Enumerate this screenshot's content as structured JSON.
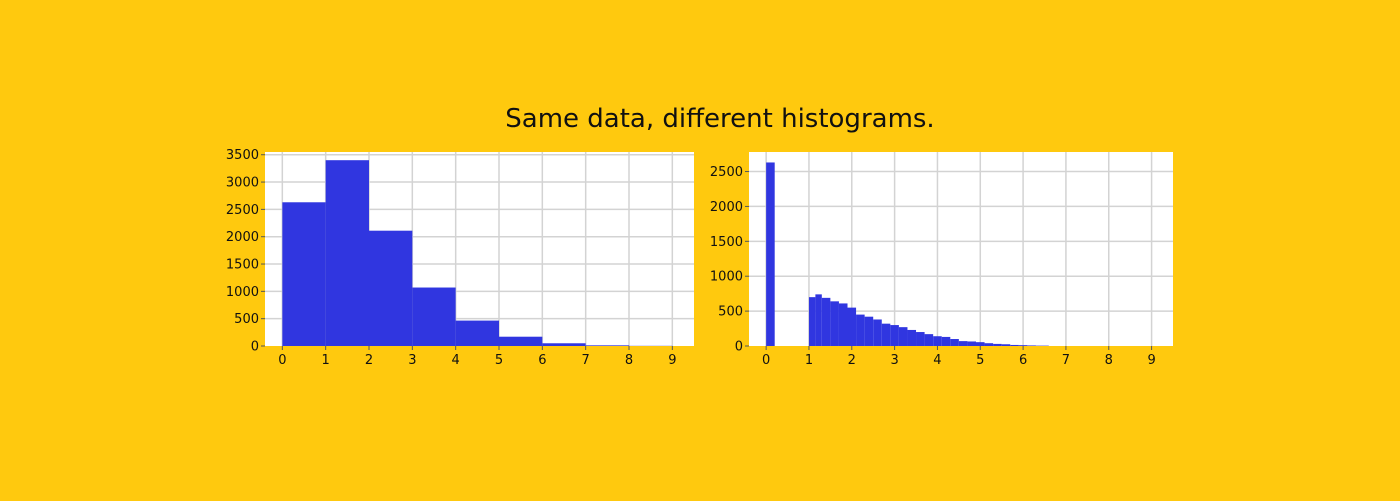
{
  "title": "Same data, different histograms.",
  "colors": {
    "background": "#FFC90E",
    "bar": "#3036E0",
    "grid": "#D3D3D3",
    "plot_bg": "#FFFFFF"
  },
  "chart_data": [
    {
      "type": "bar",
      "title": "",
      "xlabel": "",
      "ylabel": "",
      "xlim": [
        -0.4,
        9.5
      ],
      "ylim": [
        0,
        3550
      ],
      "xticks": [
        "0",
        "1",
        "2",
        "3",
        "4",
        "5",
        "6",
        "7",
        "8",
        "9"
      ],
      "yticks": [
        "0",
        "500",
        "1000",
        "1500",
        "2000",
        "2500",
        "3000",
        "3500"
      ],
      "grid": true,
      "bins": [
        {
          "x0": 0,
          "x1": 1,
          "value": 2630
        },
        {
          "x0": 1,
          "x1": 2,
          "value": 3400
        },
        {
          "x0": 2,
          "x1": 3,
          "value": 2110
        },
        {
          "x0": 3,
          "x1": 4,
          "value": 1070
        },
        {
          "x0": 4,
          "x1": 5,
          "value": 465
        },
        {
          "x0": 5,
          "x1": 6,
          "value": 170
        },
        {
          "x0": 6,
          "x1": 7,
          "value": 50
        },
        {
          "x0": 7,
          "x1": 8,
          "value": 12
        },
        {
          "x0": 8,
          "x1": 9,
          "value": 3
        }
      ]
    },
    {
      "type": "bar",
      "title": "",
      "xlabel": "",
      "ylabel": "",
      "xlim": [
        -0.4,
        9.5
      ],
      "ylim": [
        0,
        2780
      ],
      "xticks": [
        "0",
        "1",
        "2",
        "3",
        "4",
        "5",
        "6",
        "7",
        "8",
        "9"
      ],
      "yticks": [
        "0",
        "500",
        "1000",
        "1500",
        "2000",
        "2500"
      ],
      "grid": true,
      "bins": [
        {
          "x0": 0.0,
          "x1": 0.2,
          "value": 2630
        },
        {
          "x0": 1.0,
          "x1": 1.15,
          "value": 700
        },
        {
          "x0": 1.15,
          "x1": 1.3,
          "value": 740
        },
        {
          "x0": 1.3,
          "x1": 1.5,
          "value": 690
        },
        {
          "x0": 1.5,
          "x1": 1.7,
          "value": 640
        },
        {
          "x0": 1.7,
          "x1": 1.9,
          "value": 610
        },
        {
          "x0": 1.9,
          "x1": 2.1,
          "value": 550
        },
        {
          "x0": 2.1,
          "x1": 2.3,
          "value": 450
        },
        {
          "x0": 2.3,
          "x1": 2.5,
          "value": 420
        },
        {
          "x0": 2.5,
          "x1": 2.7,
          "value": 380
        },
        {
          "x0": 2.7,
          "x1": 2.9,
          "value": 320
        },
        {
          "x0": 2.9,
          "x1": 3.1,
          "value": 300
        },
        {
          "x0": 3.1,
          "x1": 3.3,
          "value": 270
        },
        {
          "x0": 3.3,
          "x1": 3.5,
          "value": 230
        },
        {
          "x0": 3.5,
          "x1": 3.7,
          "value": 200
        },
        {
          "x0": 3.7,
          "x1": 3.9,
          "value": 170
        },
        {
          "x0": 3.9,
          "x1": 4.1,
          "value": 140
        },
        {
          "x0": 4.1,
          "x1": 4.3,
          "value": 130
        },
        {
          "x0": 4.3,
          "x1": 4.5,
          "value": 100
        },
        {
          "x0": 4.5,
          "x1": 4.7,
          "value": 70
        },
        {
          "x0": 4.7,
          "x1": 4.9,
          "value": 65
        },
        {
          "x0": 4.9,
          "x1": 5.1,
          "value": 55
        },
        {
          "x0": 5.1,
          "x1": 5.3,
          "value": 40
        },
        {
          "x0": 5.3,
          "x1": 5.5,
          "value": 30
        },
        {
          "x0": 5.5,
          "x1": 5.7,
          "value": 25
        },
        {
          "x0": 5.7,
          "x1": 5.9,
          "value": 15
        },
        {
          "x0": 5.9,
          "x1": 6.1,
          "value": 12
        },
        {
          "x0": 6.1,
          "x1": 6.3,
          "value": 8
        },
        {
          "x0": 6.3,
          "x1": 6.6,
          "value": 5
        }
      ]
    }
  ]
}
